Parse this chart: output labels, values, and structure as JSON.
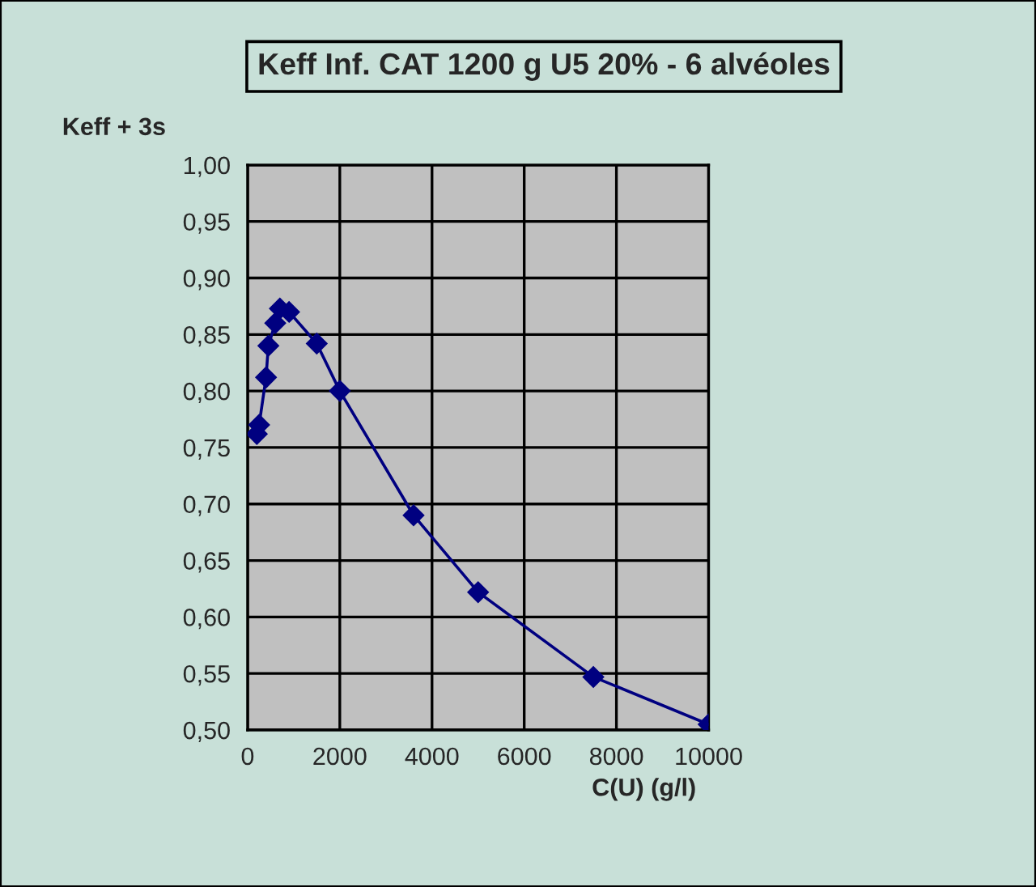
{
  "chart_data": {
    "type": "line",
    "title": "Keff Inf. CAT 1200 g U5 20% - 6 alvéoles",
    "xlabel": "C(U) (g/l)",
    "ylabel": "Keff + 3s",
    "x": [
      200,
      250,
      400,
      450,
      600,
      700,
      900,
      1500,
      2000,
      3600,
      5000,
      7500,
      10000
    ],
    "series": [
      {
        "color": "#000080",
        "values": [
          0.762,
          0.77,
          0.812,
          0.84,
          0.86,
          0.873,
          0.87,
          0.842,
          0.8,
          0.69,
          0.622,
          0.547,
          0.505
        ]
      }
    ],
    "marker": "diamond",
    "line_style": "solid",
    "grid": true,
    "xlim": [
      0,
      10000
    ],
    "xticks": [
      0,
      2000,
      4000,
      6000,
      8000,
      10000
    ],
    "ylim": [
      0.5,
      1.0
    ],
    "yticks": [
      {
        "value": 0.5,
        "label": "0,50"
      },
      {
        "value": 0.55,
        "label": "0,55"
      },
      {
        "value": 0.6,
        "label": "0,60"
      },
      {
        "value": 0.65,
        "label": "0,65"
      },
      {
        "value": 0.7,
        "label": "0,70"
      },
      {
        "value": 0.75,
        "label": "0,75"
      },
      {
        "value": 0.8,
        "label": "0,80"
      },
      {
        "value": 0.85,
        "label": "0,85"
      },
      {
        "value": 0.9,
        "label": "0,90"
      },
      {
        "value": 0.95,
        "label": "0,95"
      },
      {
        "value": 1.0,
        "label": "1,00"
      }
    ]
  }
}
